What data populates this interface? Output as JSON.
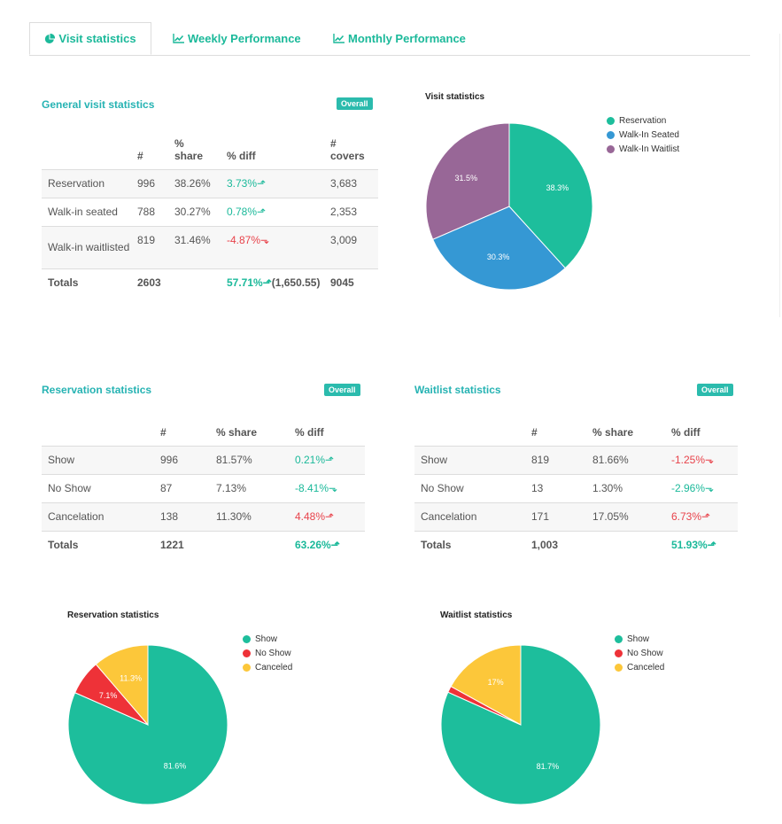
{
  "tabs": [
    {
      "label": "Visit statistics",
      "icon": "pie-chart-icon"
    },
    {
      "label": "Weekly Performance",
      "icon": "line-chart-icon"
    },
    {
      "label": "Monthly Performance",
      "icon": "line-chart-icon"
    }
  ],
  "general": {
    "title": "General visit statistics",
    "badge": "Overall",
    "headers": [
      "#",
      "%\nshare",
      "% diff",
      "#\ncovers"
    ],
    "rows": [
      {
        "label": "Reservation",
        "count": "996",
        "share": "38.26%",
        "diff": "3.73%",
        "dir": "up",
        "covers": "3,683"
      },
      {
        "label": "Walk-in seated",
        "count": "788",
        "share": "30.27%",
        "diff": "0.78%",
        "dir": "up",
        "covers": "2,353"
      },
      {
        "label": "Walk-in waitlisted",
        "count": "819",
        "share": "31.46%",
        "diff": "-4.87%",
        "dir": "down",
        "covers": "3,009"
      }
    ],
    "totals": {
      "label": "Totals",
      "count": "2603",
      "diff": "57.71%",
      "diff_extra": "(1,650.55)",
      "covers": "9045"
    }
  },
  "reservation": {
    "title": "Reservation statistics",
    "badge": "Overall",
    "headers": [
      "#",
      "% share",
      "% diff"
    ],
    "rows": [
      {
        "label": "Show",
        "count": "996",
        "share": "81.57%",
        "diff": "0.21%",
        "dir": "up",
        "color": "up"
      },
      {
        "label": "No Show",
        "count": "87",
        "share": "7.13%",
        "diff": "-8.41%",
        "dir": "down",
        "color": "up"
      },
      {
        "label": "Cancelation",
        "count": "138",
        "share": "11.30%",
        "diff": "4.48%",
        "dir": "up",
        "color": "down"
      }
    ],
    "totals": {
      "label": "Totals",
      "count": "1221",
      "diff": "63.26%"
    }
  },
  "waitlist": {
    "title": "Waitlist statistics",
    "badge": "Overall",
    "headers": [
      "#",
      "% share",
      "% diff"
    ],
    "rows": [
      {
        "label": "Show",
        "count": "819",
        "share": "81.66%",
        "diff": "-1.25%",
        "dir": "down",
        "color": "down"
      },
      {
        "label": "No Show",
        "count": "13",
        "share": "1.30%",
        "diff": "-2.96%",
        "dir": "down",
        "color": "up"
      },
      {
        "label": "Cancelation",
        "count": "171",
        "share": "17.05%",
        "diff": "6.73%",
        "dir": "up",
        "color": "down"
      }
    ],
    "totals": {
      "label": "Totals",
      "count": "1,003",
      "diff": "51.93%"
    }
  },
  "chart_data": [
    {
      "type": "pie",
      "title": "Visit statistics",
      "legend_position": "top-right",
      "categories": [
        "Reservation",
        "Walk-In Seated",
        "Walk-In Waitlist"
      ],
      "values": [
        38.3,
        30.3,
        31.5
      ],
      "labels": [
        "38.3%",
        "30.3%",
        "31.5%"
      ],
      "colors": [
        "#1dbe9c",
        "#3598d4",
        "#986797"
      ]
    },
    {
      "type": "pie",
      "title": "Reservation statistics",
      "legend_position": "top-right",
      "categories": [
        "Show",
        "No Show",
        "Canceled"
      ],
      "values": [
        81.6,
        7.1,
        11.3
      ],
      "labels": [
        "81.6%",
        "7.1%",
        "11.3%"
      ],
      "colors": [
        "#1dbe9c",
        "#ee3238",
        "#fcc73a"
      ]
    },
    {
      "type": "pie",
      "title": "Waitlist statistics",
      "legend_position": "top-right",
      "categories": [
        "Show",
        "No Show",
        "Canceled"
      ],
      "values": [
        81.7,
        1.3,
        17
      ],
      "labels": [
        "81.7%",
        "",
        "17%"
      ],
      "colors": [
        "#1dbe9c",
        "#ee3238",
        "#fcc73a"
      ]
    }
  ]
}
